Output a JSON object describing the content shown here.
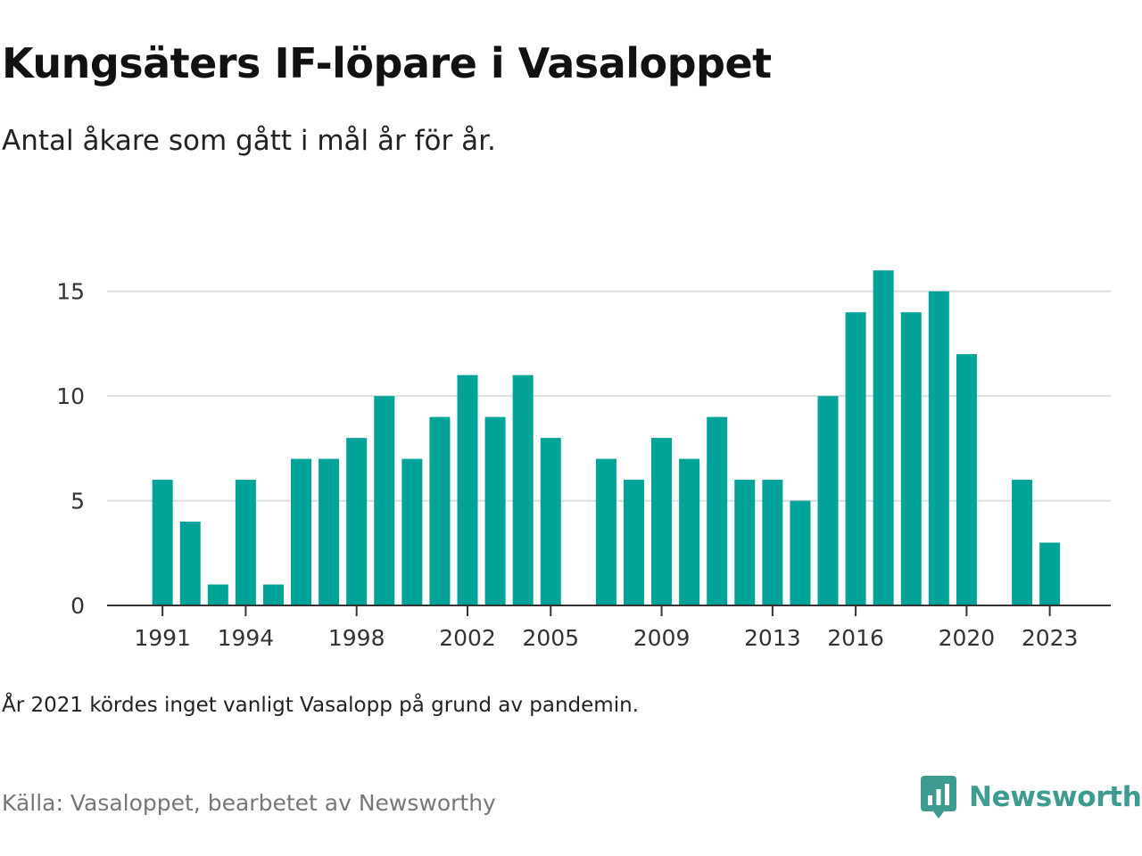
{
  "title": "Kungsäters IF-löpare i Vasaloppet",
  "subtitle": "Antal åkare som gått i mål år för år.",
  "note": "År 2021 kördes inget vanligt Vasalopp på grund av pandemin.",
  "source": "Källa: Vasaloppet, bearbetet av Newsworthy",
  "brand": {
    "name": "Newsworthy",
    "icon": "newsworthy-logo-icon",
    "color": "#3d9c8f"
  },
  "colors": {
    "bar": "#00a398",
    "grid": "#dddddd",
    "axis": "#333333"
  },
  "chart_data": {
    "type": "bar",
    "x": [
      1991,
      1992,
      1993,
      1994,
      1995,
      1996,
      1997,
      1998,
      1999,
      2000,
      2001,
      2002,
      2003,
      2004,
      2005,
      2006,
      2007,
      2008,
      2009,
      2010,
      2011,
      2012,
      2013,
      2014,
      2015,
      2016,
      2017,
      2018,
      2019,
      2020,
      2021,
      2022,
      2023
    ],
    "values": [
      6,
      4,
      1,
      6,
      1,
      7,
      7,
      8,
      10,
      7,
      9,
      11,
      9,
      11,
      8,
      null,
      7,
      6,
      8,
      7,
      9,
      6,
      6,
      5,
      10,
      14,
      16,
      14,
      15,
      12,
      null,
      6,
      3
    ],
    "xticks": [
      1991,
      1994,
      1998,
      2002,
      2005,
      2009,
      2013,
      2016,
      2020,
      2023
    ],
    "yticks": [
      0,
      5,
      10,
      15
    ],
    "ylim": [
      0,
      16.5
    ],
    "xlim": [
      1989,
      2025.2
    ],
    "grid": true,
    "legend": "none"
  }
}
